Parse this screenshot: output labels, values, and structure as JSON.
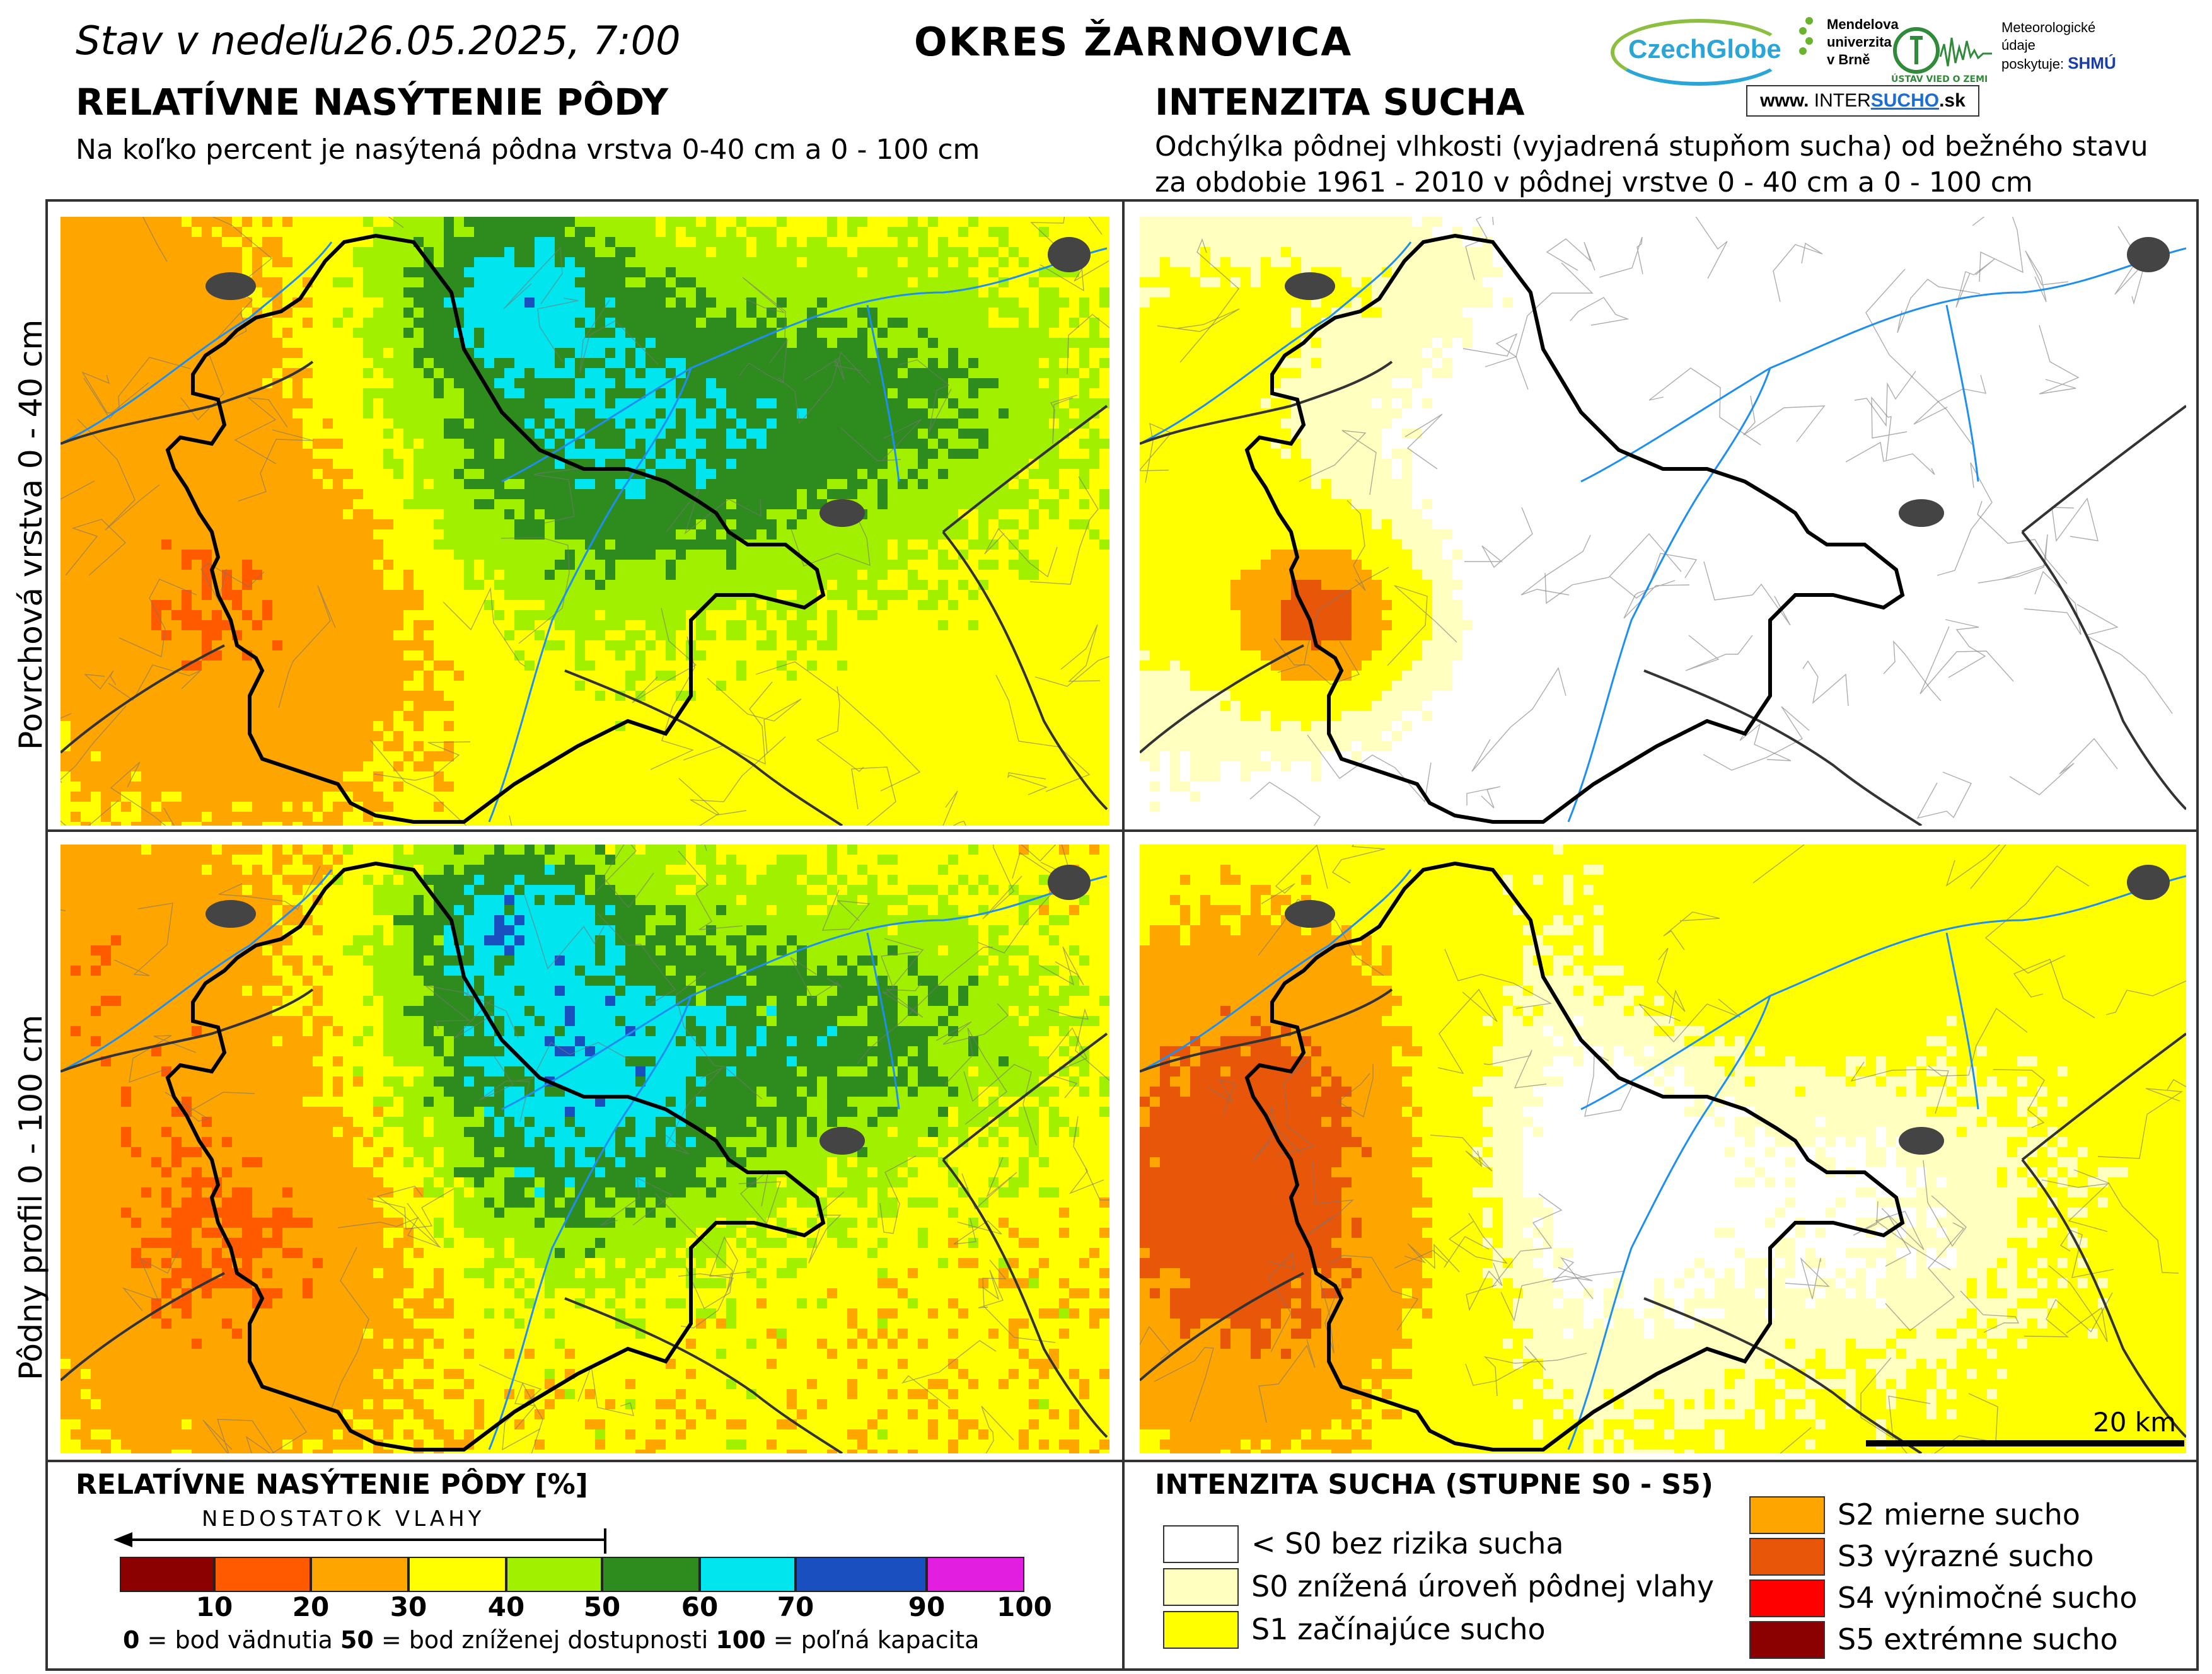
{
  "header": {
    "date_line": "Stav v nedeľu26.05.2025, 7:00",
    "district": "OKRES  ŽARNOVICA"
  },
  "left_panel": {
    "title": "RELATÍVNE NASÝTENIE PÔDY",
    "subtitle": "Na koľko percent je nasýtená pôdna vrstva 0-40 cm a 0 - 100 cm"
  },
  "right_panel": {
    "title": "INTENZITA SUCHA",
    "subtitle_line1": "Odchýlka pôdnej vlhkosti (vyjadrená stupňom sucha) od bežného stavu",
    "subtitle_line2": "za obdobie 1961 - 2010 v pôdnej vrstve 0 - 40 cm a 0 - 100 cm"
  },
  "logos": {
    "czechglobe": "CzechGlobe",
    "mendel_l1": "Mendelova",
    "mendel_l2": "univerzita",
    "mendel_l3": "v Brně",
    "ugv": "ÚSTAV VIED O ZEMI",
    "shmu_l1": "Meteorologické",
    "shmu_l2": "údaje",
    "shmu_l3": "poskytuje:",
    "shmu_badge": "SHMÚ",
    "intersucho_www": "www.",
    "intersucho_a": "INTER",
    "intersucho_b": "SUCHO",
    "intersucho_c": ".sk"
  },
  "rows": {
    "top": "Povrchová vrstva 0 - 40 cm",
    "bottom": "Pôdny profil 0 - 100 cm"
  },
  "scale": {
    "label": "20 km"
  },
  "legend_saturation": {
    "title": "RELATÍVNE NASÝTENIE PÔDY [%]",
    "arrow_label": "NEDOSTATOK VLAHY",
    "colors": [
      "#8b0000",
      "#ff5a00",
      "#ffa500",
      "#ffff00",
      "#a0f000",
      "#2e8b1e",
      "#00e5ee",
      "#1a4fc0",
      "#e21ee0"
    ],
    "ticks": [
      "10",
      "20",
      "30",
      "40",
      "50",
      "60",
      "70",
      "90",
      "100"
    ],
    "note_0": "0",
    "note_0_text": " = bod vädnutia  ",
    "note_50": "50",
    "note_50_text": " = bod zníženej dostupnosti  ",
    "note_100": "100",
    "note_100_text": " = poľná kapacita"
  },
  "legend_drought": {
    "title": "INTENZITA SUCHA (STUPNE S0 - S5)",
    "items": [
      {
        "label": "< S0 bez rizika sucha",
        "color": "#ffffff"
      },
      {
        "label": "S0 znížená úroveň pôdnej vlahy",
        "color": "#ffffc0"
      },
      {
        "label": "S1 začínajúce sucho",
        "color": "#ffff00"
      },
      {
        "label": "S2 mierne sucho",
        "color": "#ffa500"
      },
      {
        "label": "S3 výrazné sucho",
        "color": "#e8560a"
      },
      {
        "label": "S4 výnimočné sucho",
        "color": "#ff0000"
      },
      {
        "label": "S5 extrémne sucho",
        "color": "#8b0000"
      }
    ]
  },
  "map_colors": {
    "river": "#1e8ff0",
    "border_district": "#000000",
    "border_region": "#333333",
    "town": "#444444"
  }
}
